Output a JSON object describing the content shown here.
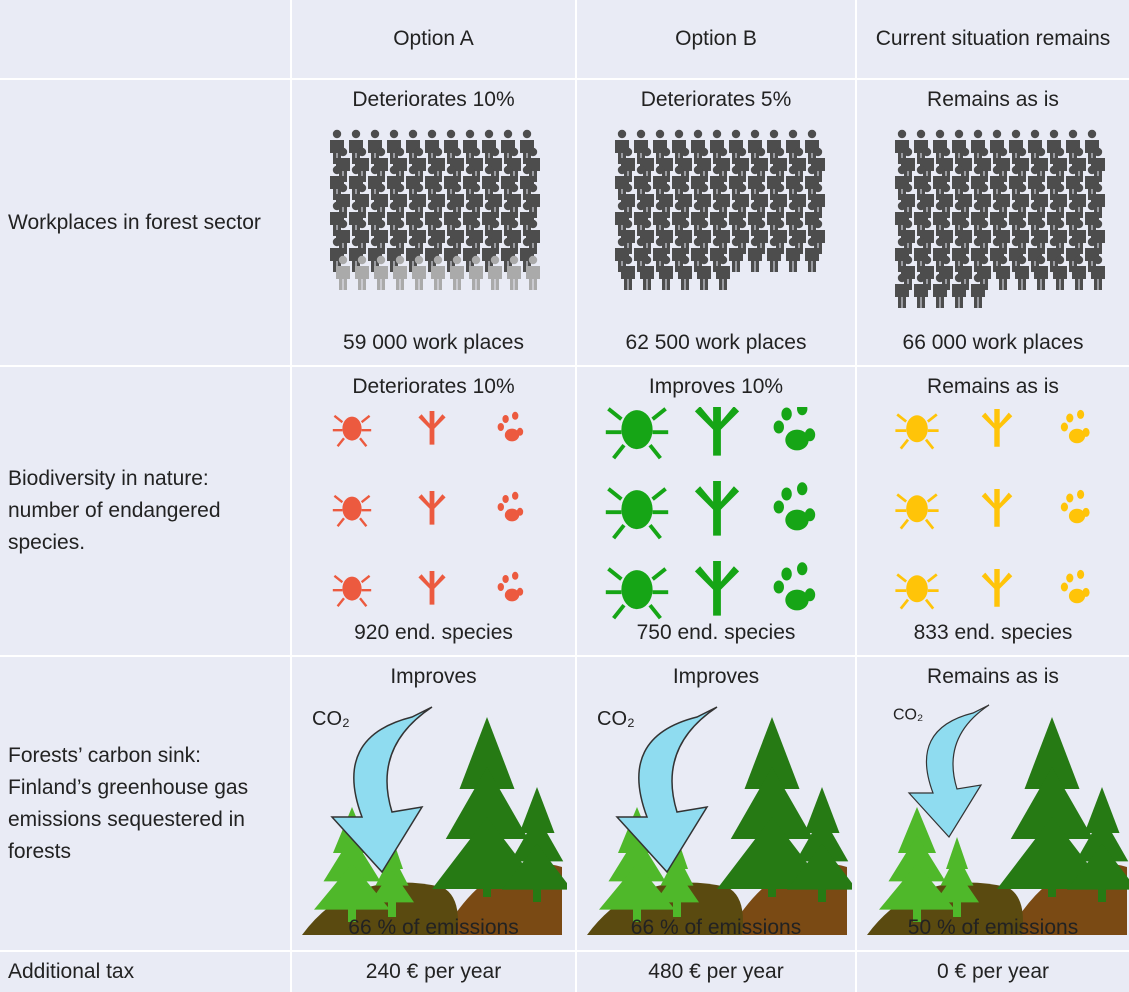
{
  "header": {
    "columns": [
      "Option A",
      "Option B",
      "Current situation remains"
    ]
  },
  "rows": [
    {
      "label": "Workplaces in forest sector",
      "cells": [
        {
          "status": "Deteriorates 10%",
          "value": "59 000 work places"
        },
        {
          "status": "Deteriorates 5%",
          "value": "62 500 work places"
        },
        {
          "status": "Remains as is",
          "value": "66 000 work places"
        }
      ]
    },
    {
      "label": "Biodiversity in nature: number of endangered species.",
      "cells": [
        {
          "status": "Deteriorates 10%",
          "value": "920 end. species"
        },
        {
          "status": "Improves 10%",
          "value": "750 end. species"
        },
        {
          "status": "Remains as is",
          "value": "833 end. species"
        }
      ]
    },
    {
      "label": "Forests’ carbon sink: Finland’s greenhouse gas emissions sequestered in forests",
      "cells": [
        {
          "status": "Improves",
          "arrow_label": "CO₂",
          "value": "66 % of emissions"
        },
        {
          "status": "Improves",
          "arrow_label": "CO₂",
          "value": "66 % of emissions"
        },
        {
          "status": "Remains as is",
          "arrow_label": "CO₂",
          "value": "50 % of emissions"
        }
      ]
    },
    {
      "label": "Additional tax",
      "cells": [
        {
          "value": "240 € per year"
        },
        {
          "value": "480 € per year"
        },
        {
          "value": "0 € per year"
        }
      ]
    }
  ]
}
